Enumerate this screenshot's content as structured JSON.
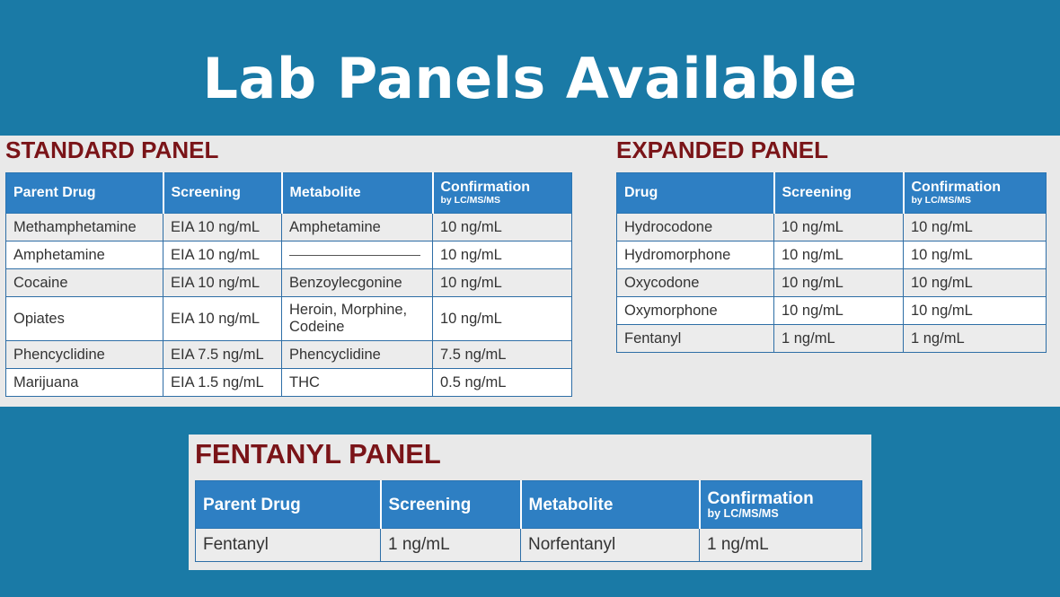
{
  "title": "Lab Panels Available",
  "colors": {
    "background": "#1a7aa6",
    "header_cell": "#2e7fc3",
    "panel_title": "#7a1418",
    "band": "#e9e9e9"
  },
  "standard": {
    "title": "STANDARD PANEL",
    "headers": [
      "Parent Drug",
      "Screening",
      "Metabolite",
      "Confirmation"
    ],
    "header_sub": "by LC/MS/MS",
    "rows": [
      [
        "Methamphetamine",
        "EIA 10 ng/mL",
        "Amphetamine",
        "10 ng/mL"
      ],
      [
        "Amphetamine",
        "EIA 10 ng/mL",
        "",
        "10 ng/mL"
      ],
      [
        "Cocaine",
        "EIA 10 ng/mL",
        "Benzoylecgonine",
        "10 ng/mL"
      ],
      [
        "Opiates",
        "EIA 10 ng/mL",
        "Heroin, Morphine, Codeine",
        "10 ng/mL"
      ],
      [
        "Phencyclidine",
        "EIA 7.5 ng/mL",
        "Phencyclidine",
        "7.5 ng/mL"
      ],
      [
        "Marijuana",
        "EIA 1.5 ng/mL",
        "THC",
        "0.5 ng/mL"
      ]
    ]
  },
  "expanded": {
    "title": "EXPANDED PANEL",
    "headers": [
      "Drug",
      "Screening",
      "Confirmation"
    ],
    "header_sub": "by LC/MS/MS",
    "rows": [
      [
        "Hydrocodone",
        "10 ng/mL",
        "10 ng/mL"
      ],
      [
        "Hydromorphone",
        "10 ng/mL",
        "10 ng/mL"
      ],
      [
        "Oxycodone",
        "10 ng/mL",
        "10 ng/mL"
      ],
      [
        "Oxymorphone",
        "10 ng/mL",
        "10 ng/mL"
      ],
      [
        "Fentanyl",
        "1 ng/mL",
        "1 ng/mL"
      ]
    ]
  },
  "fentanyl": {
    "title": "FENTANYL PANEL",
    "headers": [
      "Parent Drug",
      "Screening",
      "Metabolite",
      "Confirmation"
    ],
    "header_sub": "by LC/MS/MS",
    "rows": [
      [
        "Fentanyl",
        "1 ng/mL",
        "Norfentanyl",
        "1 ng/mL"
      ]
    ]
  }
}
